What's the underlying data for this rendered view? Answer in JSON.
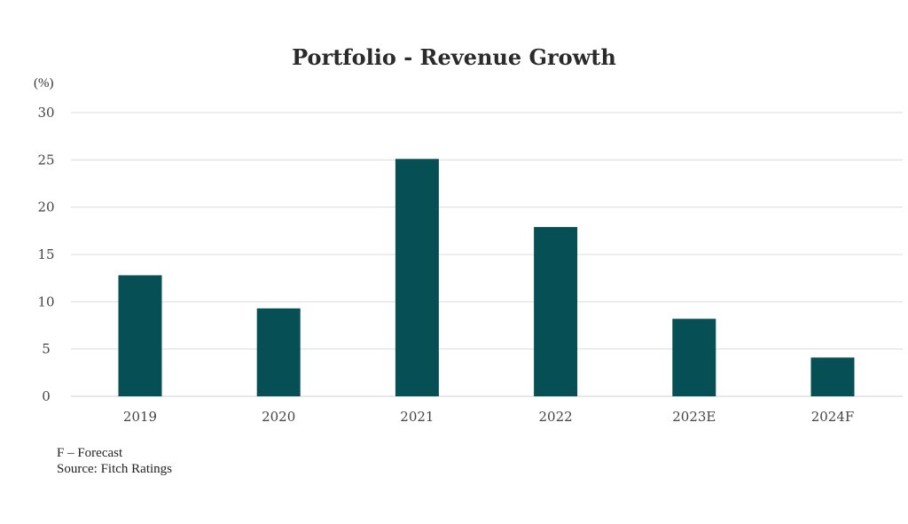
{
  "chart_data": {
    "type": "bar",
    "title": "Portfolio - Revenue Growth",
    "unit_label": "(%)",
    "categories": [
      "2019",
      "2020",
      "2021",
      "2022",
      "2023E",
      "2024F"
    ],
    "values": [
      12.8,
      9.3,
      25.1,
      17.9,
      8.2,
      4.1
    ],
    "ylim": [
      0,
      30
    ],
    "yticks": [
      0,
      5,
      10,
      15,
      20,
      25,
      30
    ],
    "grid": true,
    "bar_color": "#064f55"
  },
  "footnotes": {
    "forecast_note": "F – Forecast",
    "source": "Source: Fitch Ratings"
  }
}
